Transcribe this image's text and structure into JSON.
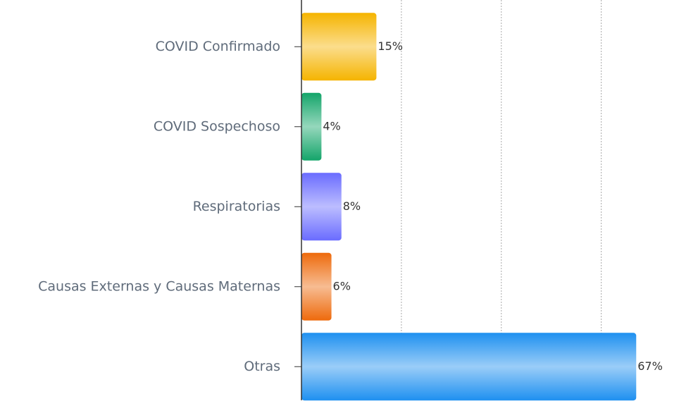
{
  "chart_data": {
    "type": "hbar",
    "categories": [
      "COVID Confirmado",
      "COVID Sospechoso",
      "Respiratorias",
      "Causas Externas y Causas Maternas",
      "Otras"
    ],
    "values": [
      15,
      4,
      8,
      6,
      67
    ],
    "value_labels": [
      "15%",
      "4%",
      "8%",
      "6%",
      "67%"
    ],
    "colors": [
      "#f5b400",
      "#14a56a",
      "#6a6cff",
      "#ee6a0c",
      "#1e90f0"
    ],
    "xlim": [
      0,
      75
    ],
    "xticks": [
      0,
      20,
      40,
      60
    ],
    "grid": true
  }
}
